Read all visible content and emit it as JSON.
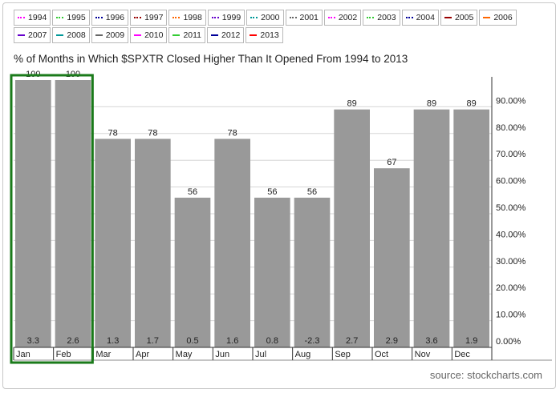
{
  "legend": [
    {
      "label": "1994",
      "color": "#ff00ff",
      "style": "dotted"
    },
    {
      "label": "1995",
      "color": "#33cc33",
      "style": "dotted"
    },
    {
      "label": "1996",
      "color": "#000099",
      "style": "dotted"
    },
    {
      "label": "1997",
      "color": "#990000",
      "style": "dotted"
    },
    {
      "label": "1998",
      "color": "#ff6600",
      "style": "dotted"
    },
    {
      "label": "1999",
      "color": "#6600cc",
      "style": "dotted"
    },
    {
      "label": "2000",
      "color": "#009999",
      "style": "dotted"
    },
    {
      "label": "2001",
      "color": "#666666",
      "style": "dotted"
    },
    {
      "label": "2002",
      "color": "#ff00ff",
      "style": "dotted"
    },
    {
      "label": "2003",
      "color": "#33cc33",
      "style": "dotted"
    },
    {
      "label": "2004",
      "color": "#000099",
      "style": "dotted"
    },
    {
      "label": "2005",
      "color": "#990000",
      "style": "solid"
    },
    {
      "label": "2006",
      "color": "#ff6600",
      "style": "solid"
    },
    {
      "label": "2007",
      "color": "#6600cc",
      "style": "solid"
    },
    {
      "label": "2008",
      "color": "#009999",
      "style": "solid"
    },
    {
      "label": "2009",
      "color": "#666666",
      "style": "solid"
    },
    {
      "label": "2010",
      "color": "#ff00ff",
      "style": "solid"
    },
    {
      "label": "2011",
      "color": "#33cc33",
      "style": "solid"
    },
    {
      "label": "2012",
      "color": "#000099",
      "style": "solid"
    },
    {
      "label": "2013",
      "color": "#ff0000",
      "style": "solid"
    }
  ],
  "source": "source: stockcharts.com",
  "chart_data": {
    "type": "bar",
    "title": "% of Months in Which $SPXTR Closed Higher Than It Opened From 1994 to 2013",
    "categories": [
      "Jan",
      "Feb",
      "Mar",
      "Apr",
      "May",
      "Jun",
      "Jul",
      "Aug",
      "Sep",
      "Oct",
      "Nov",
      "Dec"
    ],
    "values": [
      100,
      100,
      78,
      78,
      56,
      78,
      56,
      56,
      89,
      67,
      89,
      89
    ],
    "bottom_labels": [
      "3.3",
      "2.6",
      "1.3",
      "1.7",
      "0.5",
      "1.6",
      "0.8",
      "-2.3",
      "2.7",
      "2.9",
      "3.6",
      "1.9"
    ],
    "y_ticks": [
      "0.00%",
      "10.00%",
      "20.00%",
      "30.00%",
      "40.00%",
      "50.00%",
      "60.00%",
      "70.00%",
      "80.00%",
      "90.00%"
    ],
    "ylim": [
      0,
      100
    ],
    "y_axis_side": "right",
    "grid": true,
    "bar_color": "#999999",
    "highlight": {
      "categories": [
        "Jan",
        "Feb"
      ],
      "color": "#1a7a1a"
    }
  }
}
